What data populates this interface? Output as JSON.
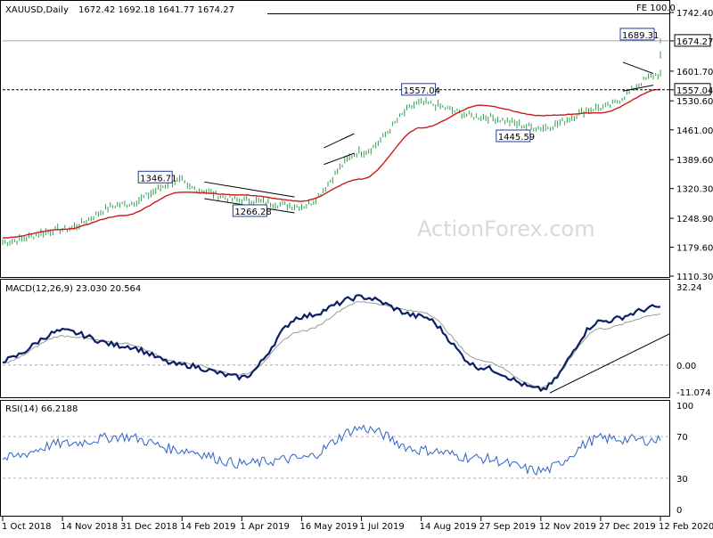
{
  "header": {
    "symbol": "XAUUSD,Daily",
    "ohlc": "1672.42 1692.18 1641.77 1674.27"
  },
  "watermark": "ActionForex.com",
  "colors": {
    "candle": "#2e9e4e",
    "ma": "#cc1a1a",
    "macd": "#0b1f66",
    "signal": "#9a9a9a",
    "rsi": "#2f63c9",
    "box_border": "#1f3c99",
    "grid": "#9a9a9a",
    "watermark": "#d9d9d9"
  },
  "chart_data": [
    {
      "type": "line",
      "title": "XAUUSD,Daily",
      "x_ticks": [
        "1 Oct 2018",
        "14 Nov 2018",
        "31 Dec 2018",
        "14 Feb 2019",
        "1 Apr 2019",
        "16 May 2019",
        "1 Jul 2019",
        "14 Aug 2019",
        "27 Sep 2019",
        "12 Nov 2019",
        "27 Dec 2019",
        "12 Feb 2020"
      ],
      "y_ticks": [
        1742.4,
        1674.27,
        1601.7,
        1557.04,
        1530.6,
        1461.0,
        1389.6,
        1320.3,
        1248.9,
        1179.6,
        1110.3
      ],
      "y_tick_labels": [
        "1742.40",
        "1674.27",
        "1601.70",
        "1557.04",
        "1530.60",
        "1461.00",
        "1389.60",
        "1320.30",
        "1248.90",
        "1179.60",
        "1110.30"
      ],
      "ylim": [
        1110.3,
        1742.4
      ],
      "series": [
        {
          "x": [
            "1 Oct 2018",
            "14 Nov 2018",
            "31 Dec 2018",
            "14 Feb 2019",
            "1 Apr 2019",
            "16 May 2019",
            "1 Jul 2019",
            "14 Aug 2019",
            "27 Sep 2019",
            "12 Nov 2019",
            "27 Dec 2019",
            "12 Feb 2020"
          ],
          "values": [
            1192,
            1222,
            1282,
            1322,
            1292,
            1278,
            1408,
            1508,
            1492,
            1466,
            1514,
            1594
          ]
        },
        {
          "x": [
            "1 Oct 2018",
            "14 Nov 2018",
            "31 Dec 2018",
            "14 Feb 2019",
            "1 Apr 2019",
            "16 May 2019",
            "1 Jul 2019",
            "14 Aug 2019",
            "27 Sep 2019",
            "12 Nov 2019",
            "27 Dec 2019",
            "12 Feb 2020"
          ],
          "values": [
            1202,
            1222,
            1255,
            1312,
            1305,
            1290,
            1343,
            1466,
            1520,
            1495,
            1502,
            1558
          ]
        }
      ],
      "price_path": [
        [
          "1 Oct 2018",
          1192
        ],
        [
          "14 Nov 2018",
          1222
        ],
        [
          "31 Dec 2018",
          1282
        ],
        [
          "14 Feb 2019",
          1339
        ],
        [
          "14 Feb 2019",
          1322
        ],
        [
          "1 Apr 2019",
          1292
        ],
        [
          "16 May 2019",
          1278
        ],
        [
          "1 Jul 2019",
          1408
        ],
        [
          "14 Aug 2019",
          1525
        ],
        [
          "27 Sep 2019",
          1492
        ],
        [
          "12 Nov 2019",
          1466
        ],
        [
          "27 Dec 2019",
          1514
        ],
        [
          "12 Feb 2020",
          1594
        ],
        [
          "12 Feb 2020",
          1674.27
        ]
      ],
      "level_labels": [
        "1346.71",
        "1266.28",
        "1557.04",
        "1445.59",
        "1689.31"
      ],
      "right_boxes": [
        "1674.27",
        "1557.04"
      ],
      "annotation": "FE 100.0",
      "grid": false
    },
    {
      "type": "line",
      "title": "MACD(12,26,9) 23.030 20.564",
      "ylim": [
        -11.074,
        32.24
      ],
      "y_tick_labels": [
        "32.24",
        "0.00",
        "-11.074"
      ],
      "series": [
        {
          "x": [
            "1 Oct 2018",
            "14 Nov 2018",
            "31 Dec 2018",
            "14 Feb 2019",
            "1 Apr 2019",
            "16 May 2019",
            "1 Jul 2019",
            "14 Aug 2019",
            "27 Sep 2019",
            "12 Nov 2019",
            "27 Dec 2019",
            "12 Feb 2020"
          ],
          "values": [
            2,
            14,
            8,
            0,
            -5,
            20,
            28,
            20,
            -1,
            -10,
            18,
            24
          ]
        },
        {
          "x": [
            "1 Oct 2018",
            "14 Nov 2018",
            "31 Dec 2018",
            "14 Feb 2019",
            "1 Apr 2019",
            "16 May 2019",
            "1 Jul 2019",
            "14 Aug 2019",
            "27 Sep 2019",
            "12 Nov 2019",
            "27 Dec 2019",
            "12 Feb 2020"
          ],
          "values": [
            1,
            12,
            9,
            1,
            -4,
            14,
            26,
            22,
            2,
            -9,
            15,
            21
          ]
        }
      ],
      "grid": true
    },
    {
      "type": "line",
      "title": "RSI(14) 66.2188",
      "ylim": [
        0,
        100
      ],
      "y_tick_labels": [
        "100",
        "70",
        "30",
        "0"
      ],
      "series": [
        {
          "x": [
            "1 Oct 2018",
            "14 Nov 2018",
            "31 Dec 2018",
            "14 Feb 2019",
            "1 Apr 2019",
            "16 May 2019",
            "1 Jul 2019",
            "14 Aug 2019",
            "27 Sep 2019",
            "12 Nov 2019",
            "27 Dec 2019",
            "12 Feb 2020"
          ],
          "values": [
            49,
            63,
            70,
            57,
            44,
            49,
            78,
            57,
            49,
            37,
            68,
            66.2188
          ]
        }
      ],
      "grid": true
    }
  ]
}
